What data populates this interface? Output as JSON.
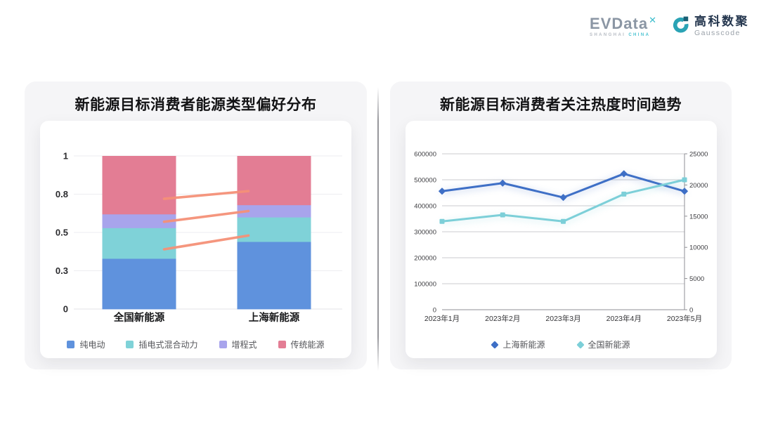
{
  "brand": {
    "evdata_text": "EVData",
    "evdata_mark": "✕",
    "evdata_sub_left": "SHANGHAI",
    "evdata_sub_right": "CHINA",
    "gausscode_cn": "高科数聚",
    "gausscode_en": "Gausscode",
    "evdata_gray": "#8b96a4",
    "accent_cyan": "#3cbdcd",
    "gauss_teal": "#2aa3b5",
    "gauss_dark_teal": "#1a6076",
    "gauss_text_navy": "#24364e"
  },
  "chart_data": [
    {
      "type": "bar",
      "stacked": true,
      "title": "新能源目标消费者能源类型偏好分布",
      "categories": [
        "全国新能源",
        "上海新能源"
      ],
      "series": [
        {
          "name": "纯电动",
          "color": "#5f92dd",
          "values": [
            0.33,
            0.44
          ]
        },
        {
          "name": "插电式混合动力",
          "color": "#7fd2d8",
          "values": [
            0.2,
            0.16
          ]
        },
        {
          "name": "增程式",
          "color": "#a8a4ec",
          "values": [
            0.09,
            0.08
          ]
        },
        {
          "name": "传统能源",
          "color": "#e37d94",
          "values": [
            0.38,
            0.32
          ]
        }
      ],
      "ylim": [
        0,
        1
      ],
      "y_tick_values": [
        0,
        0.25,
        0.5,
        0.75,
        1
      ],
      "y_tick_labels": [
        "0",
        "0.3",
        "0.5",
        "0.8",
        "1"
      ],
      "grid": true,
      "legend_position": "bottom",
      "connector_lines": {
        "color": "#f59178",
        "segments": [
          {
            "from": 0.72,
            "to": 0.77
          },
          {
            "from": 0.57,
            "to": 0.64
          },
          {
            "from": 0.39,
            "to": 0.48
          }
        ]
      }
    },
    {
      "type": "line",
      "title": "新能源目标消费者关注热度时间趋势",
      "x": [
        "2023年1月",
        "2023年2月",
        "2023年3月",
        "2023年4月",
        "2023年5月"
      ],
      "series": [
        {
          "name": "上海新能源",
          "color": "#3e6fc6",
          "marker": "diamond",
          "axis": "right",
          "values": [
            19000,
            20300,
            18000,
            21800,
            19000
          ]
        },
        {
          "name": "全国新能源",
          "color": "#7ccfd8",
          "marker": "square",
          "axis": "left",
          "values": [
            340000,
            365000,
            340000,
            445000,
            500000
          ]
        }
      ],
      "left_axis": {
        "min": 0,
        "max": 600000,
        "tick_step": 100000,
        "tick_labels": [
          "0",
          "100000",
          "200000",
          "300000",
          "400000",
          "500000",
          "600000"
        ]
      },
      "right_axis": {
        "min": 0,
        "max": 25000,
        "tick_step": 5000,
        "tick_labels": [
          "0",
          "5000",
          "10000",
          "15000",
          "20000",
          "25000"
        ]
      },
      "grid": true,
      "legend_position": "bottom"
    }
  ]
}
